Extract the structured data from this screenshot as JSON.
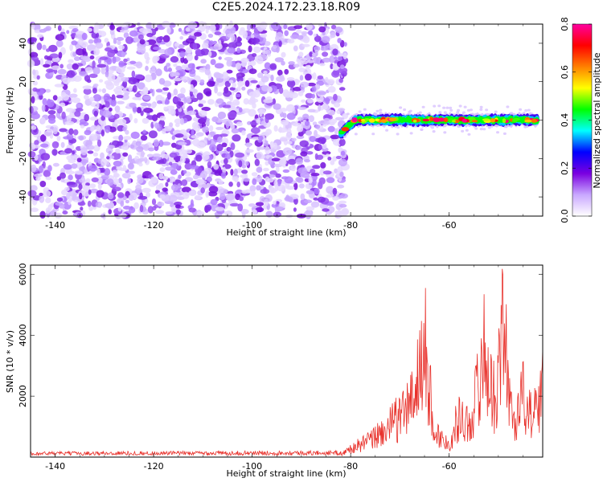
{
  "title": "C2E5.2024.172.23.18.R09",
  "chart_data": [
    {
      "type": "heatmap",
      "xlabel": "Height of straight line (km)",
      "ylabel": "Frequency (Hz)",
      "xlim": [
        -145,
        -41
      ],
      "ylim": [
        -50,
        50
      ],
      "xticks": [
        -140,
        -120,
        -100,
        -80,
        -60
      ],
      "yticks": [
        -40,
        -20,
        0,
        20,
        40
      ],
      "noise_region": {
        "x": [
          -145,
          -82
        ],
        "y": [
          -50,
          50
        ],
        "amplitude": [
          0.0,
          0.15
        ]
      },
      "signal_band": {
        "x": [
          -82,
          -42
        ],
        "center_y": [
          -7,
          0
        ],
        "amplitude_peak": 0.8
      },
      "colorbar": {
        "label": "Normalized spectral amplitude",
        "range": [
          0.0,
          0.8
        ],
        "ticks": [
          "0.0",
          "0.2",
          "0.4",
          "0.6",
          "0.8"
        ],
        "colors": [
          "#ffffff",
          "#c9a8ff",
          "#7a00e0",
          "#0000ff",
          "#00ffff",
          "#00ff00",
          "#ffff00",
          "#ff8000",
          "#ff0000",
          "#ff00a0"
        ]
      }
    },
    {
      "type": "line",
      "xlabel": "Height of straight line (km)",
      "ylabel": "SNR (10 * v/v)",
      "xlim": [
        -145,
        -41
      ],
      "ylim": [
        0,
        6300
      ],
      "xticks": [
        -140,
        -120,
        -100,
        -80,
        -60
      ],
      "yticks": [
        2000,
        4000,
        6000
      ],
      "color": "#e8302a",
      "series_keypoints": {
        "x": [
          -145,
          -82,
          -80,
          -76,
          -72,
          -68,
          -66,
          -65,
          -63,
          -60,
          -58,
          -56,
          -54,
          -53,
          -51,
          -50,
          -49,
          -47,
          -45,
          -43,
          -41
        ],
        "y": [
          100,
          130,
          400,
          800,
          1500,
          2500,
          4000,
          5500,
          1200,
          600,
          2000,
          1500,
          3500,
          5200,
          2800,
          4200,
          6250,
          1500,
          3000,
          1800,
          3300
        ]
      }
    }
  ]
}
